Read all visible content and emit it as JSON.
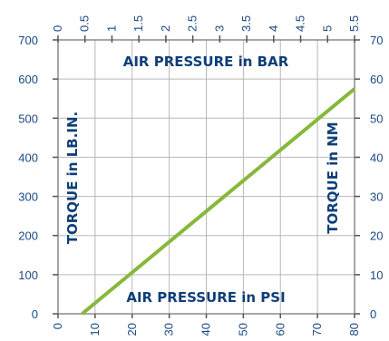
{
  "chart_data": {
    "type": "line",
    "title_top": "AIR PRESSURE  in BAR",
    "title_bottom": "AIR PRESSURE  in PSI",
    "ylabel_left": "TORQUE in LB.IN.",
    "ylabel_right": "TORQUE in NM",
    "x_psi_ticks": [
      "0",
      "10",
      "20",
      "30",
      "40",
      "50",
      "60",
      "70",
      "80"
    ],
    "x_bar_ticks": [
      "0",
      "0.5",
      "1",
      "1.5",
      "2",
      "2.5",
      "3",
      "3.5",
      "4",
      "4.5",
      "5",
      "5.5"
    ],
    "y_lbin_ticks": [
      "0",
      "100",
      "200",
      "300",
      "400",
      "500",
      "600",
      "700"
    ],
    "y_nm_ticks": [
      "0",
      "10",
      "20",
      "30",
      "40",
      "50",
      "60",
      "70"
    ],
    "xlim": [
      0,
      80
    ],
    "ylim": [
      0,
      700
    ],
    "series": [
      {
        "x": [
          6.5,
          80
        ],
        "y": [
          0,
          575
        ]
      }
    ],
    "grid": true,
    "colors": {
      "line": "#86b83a",
      "text": "#1a4a80",
      "grid": "#b8b8b8"
    }
  }
}
